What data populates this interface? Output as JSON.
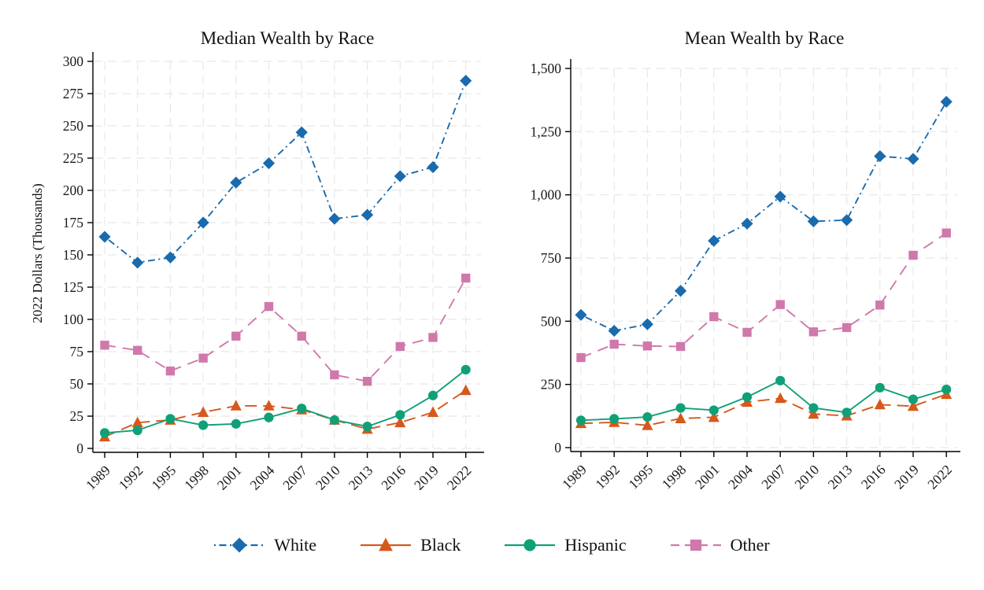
{
  "figure": {
    "ylabel": "2022 Dollars (Thousands)",
    "legend_position": "bottom",
    "x_tick_rotation": 45,
    "grid": "both-dashed",
    "colors": {
      "white_series": "#1a6bad",
      "black_series": "#d6581b",
      "hispanic_series": "#10a077",
      "other_series": "#d078ab",
      "gridline": "#e8e8e8",
      "axis": "#000000"
    },
    "legend": [
      {
        "name": "white",
        "label": "White",
        "color": "#1a6bad",
        "marker": "diamond-icon",
        "line_style": "dash-dot"
      },
      {
        "name": "black",
        "label": "Black",
        "color": "#d6581b",
        "marker": "triangle-icon",
        "line_style": "long-dash"
      },
      {
        "name": "hispanic",
        "label": "Hispanic",
        "color": "#10a077",
        "marker": "circle-icon",
        "line_style": "solid"
      },
      {
        "name": "other",
        "label": "Other",
        "color": "#d078ab",
        "marker": "square-icon",
        "line_style": "dash"
      }
    ]
  },
  "chart_data": [
    {
      "type": "line",
      "title": "Median Wealth by Race",
      "ylabel": "2022 Dollars (Thousands)",
      "x": [
        1989,
        1992,
        1995,
        1998,
        2001,
        2004,
        2007,
        2010,
        2013,
        2016,
        2019,
        2022
      ],
      "ylim": [
        0,
        300
      ],
      "ytick_step": 25,
      "series": [
        {
          "name": "White",
          "values": [
            164,
            144,
            148,
            175,
            206,
            221,
            245,
            178,
            181,
            211,
            218,
            285
          ]
        },
        {
          "name": "Black",
          "values": [
            9,
            20,
            22,
            28,
            33,
            33,
            30,
            22,
            15,
            20,
            28,
            45
          ]
        },
        {
          "name": "Hispanic",
          "values": [
            12,
            14,
            23,
            18,
            19,
            24,
            31,
            22,
            17,
            26,
            41,
            61
          ]
        },
        {
          "name": "Other",
          "values": [
            80,
            76,
            60,
            70,
            87,
            110,
            87,
            57,
            52,
            79,
            86,
            132
          ]
        }
      ]
    },
    {
      "type": "line",
      "title": "Mean Wealth by Race",
      "ylabel": "2022 Dollars (Thousands)",
      "x": [
        1989,
        1992,
        1995,
        1998,
        2001,
        2004,
        2007,
        2010,
        2013,
        2016,
        2019,
        2022
      ],
      "ylim": [
        0,
        1500
      ],
      "ytick_step": 250,
      "series": [
        {
          "name": "White",
          "values": [
            525,
            462,
            488,
            620,
            818,
            886,
            993,
            895,
            900,
            1153,
            1142,
            1368
          ]
        },
        {
          "name": "Black",
          "values": [
            96,
            100,
            88,
            115,
            120,
            180,
            195,
            133,
            126,
            170,
            164,
            211
          ]
        },
        {
          "name": "Hispanic",
          "values": [
            108,
            114,
            121,
            157,
            148,
            200,
            265,
            157,
            139,
            237,
            191,
            230
          ]
        },
        {
          "name": "Other",
          "values": [
            356,
            409,
            402,
            400,
            518,
            456,
            566,
            458,
            475,
            564,
            761,
            849
          ]
        }
      ]
    }
  ]
}
